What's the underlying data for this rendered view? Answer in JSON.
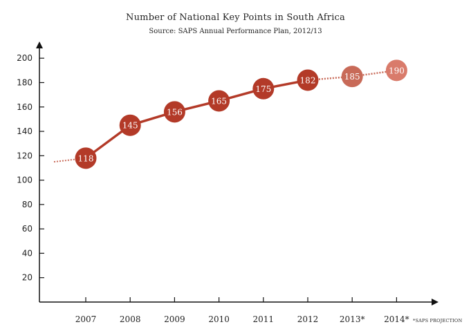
{
  "colors": {
    "actual": "#b33a28",
    "projection_line": "#c86a58",
    "projection_point": "#d97b6b",
    "axis": "#111111"
  },
  "chart_data": {
    "type": "line",
    "title": "Number of National Key Points in South Africa",
    "subtitle": "Source: SAPS Annual Performance Plan, 2012/13",
    "categories": [
      "2007",
      "2008",
      "2009",
      "2010",
      "2011",
      "2012",
      "2013*",
      "2014*"
    ],
    "values": [
      118,
      145,
      156,
      165,
      175,
      182,
      185,
      190
    ],
    "projected": [
      false,
      false,
      false,
      false,
      false,
      false,
      true,
      true
    ],
    "lead_in_value": 115,
    "ylim": [
      0,
      210
    ],
    "yticks": [
      20,
      40,
      60,
      80,
      100,
      120,
      140,
      160,
      180,
      200
    ],
    "grid": false,
    "note": "*SAPS PROJECTION"
  }
}
